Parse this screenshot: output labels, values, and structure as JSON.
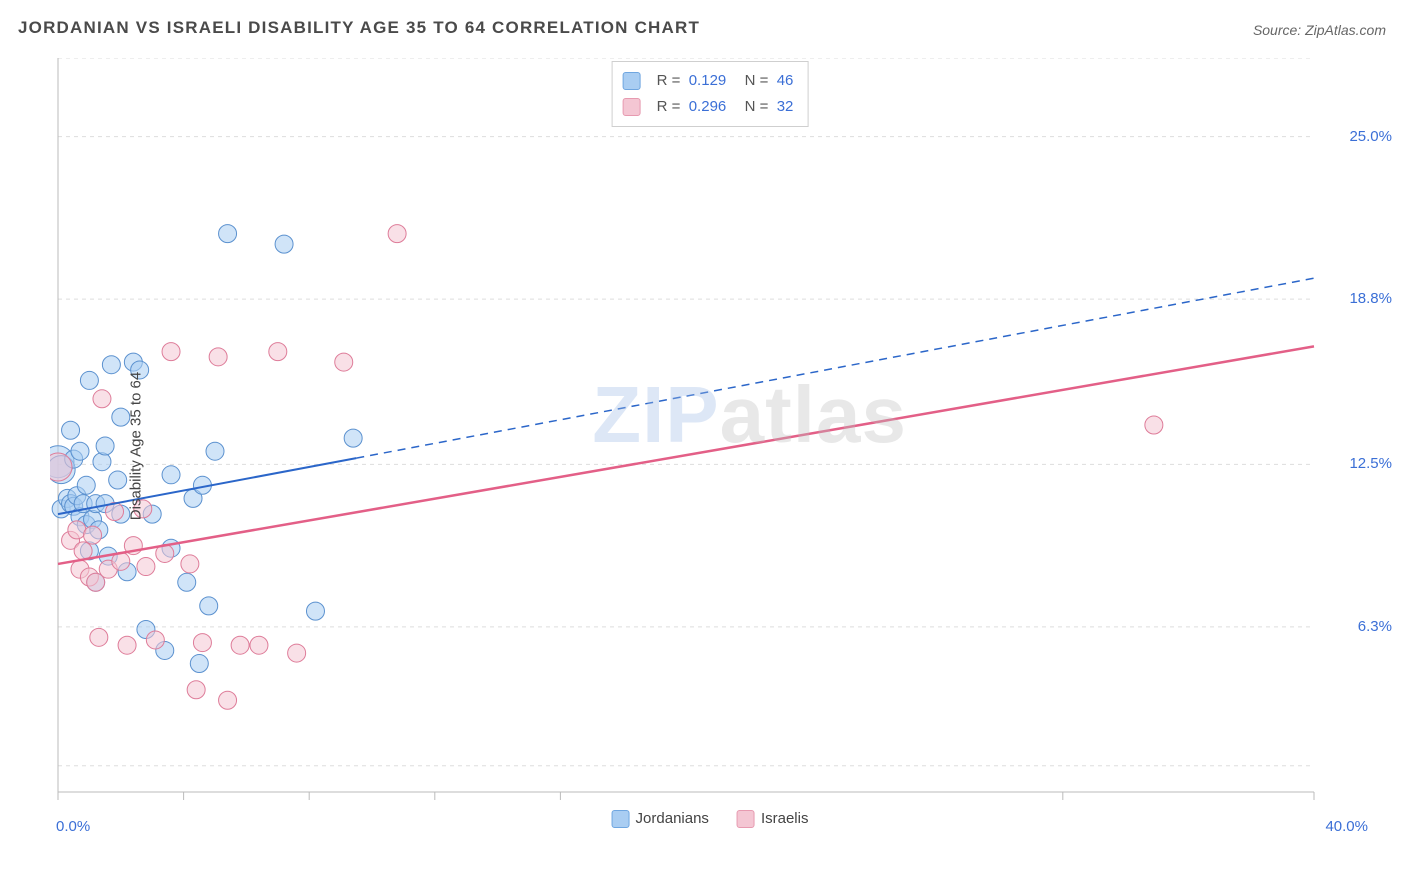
{
  "title": "JORDANIAN VS ISRAELI DISABILITY AGE 35 TO 64 CORRELATION CHART",
  "source": "Source: ZipAtlas.com",
  "ylabel": "Disability Age 35 to 64",
  "watermark_a": "ZIP",
  "watermark_b": "atlas",
  "chart": {
    "type": "scatter",
    "background_color": "#ffffff",
    "grid_color": "#dddddd",
    "axis_color": "#bbbbbb",
    "tick_color": "#bbbbbb",
    "tick_label_color": "#3b6fd6",
    "xlim": [
      0.0,
      40.0
    ],
    "ylim": [
      0.0,
      28.0
    ],
    "x_tick_positions": [
      0.0,
      4.0,
      8.0,
      12.0,
      16.0,
      32.0,
      40.0
    ],
    "x_tick_labels": {
      "0.0": "0.0%",
      "40.0": "40.0%"
    },
    "y_grid_positions": [
      1.0,
      6.3,
      12.5,
      18.8,
      25.0,
      28.0
    ],
    "y_tick_labels": {
      "6.3": "6.3%",
      "12.5": "12.5%",
      "18.8": "18.8%",
      "25.0": "25.0%"
    },
    "marker_radius": 9,
    "marker_stroke_width": 1,
    "series": [
      {
        "name": "Jordanians",
        "swatch_fill": "#a9cdf2",
        "swatch_stroke": "#6fa6e0",
        "marker_fill": "#a9cdf2",
        "marker_fill_opacity": 0.55,
        "marker_stroke": "#5b91cf",
        "trend_color": "#2b66c9",
        "trend_width": 2,
        "trend_solid_to_x": 9.5,
        "trend": {
          "x1": 0.0,
          "y1": 10.6,
          "x2": 40.0,
          "y2": 19.6
        },
        "R": "0.129",
        "N": "46",
        "points": [
          {
            "x": 0.0,
            "y": 12.6,
            "r": 16
          },
          {
            "x": 0.1,
            "y": 12.3,
            "r": 14
          },
          {
            "x": 0.1,
            "y": 10.8
          },
          {
            "x": 0.3,
            "y": 11.2
          },
          {
            "x": 0.4,
            "y": 13.8
          },
          {
            "x": 0.4,
            "y": 11.0
          },
          {
            "x": 0.5,
            "y": 12.7
          },
          {
            "x": 0.5,
            "y": 10.9
          },
          {
            "x": 0.6,
            "y": 11.3
          },
          {
            "x": 0.7,
            "y": 10.5
          },
          {
            "x": 0.7,
            "y": 13.0
          },
          {
            "x": 0.8,
            "y": 11.0
          },
          {
            "x": 0.9,
            "y": 10.2
          },
          {
            "x": 0.9,
            "y": 11.7
          },
          {
            "x": 1.0,
            "y": 9.2
          },
          {
            "x": 1.0,
            "y": 15.7
          },
          {
            "x": 1.1,
            "y": 10.4
          },
          {
            "x": 1.2,
            "y": 11.0
          },
          {
            "x": 1.2,
            "y": 8.0
          },
          {
            "x": 1.3,
            "y": 10.0
          },
          {
            "x": 1.4,
            "y": 12.6
          },
          {
            "x": 1.5,
            "y": 11.0
          },
          {
            "x": 1.5,
            "y": 13.2
          },
          {
            "x": 1.6,
            "y": 9.0
          },
          {
            "x": 1.7,
            "y": 16.3
          },
          {
            "x": 1.9,
            "y": 11.9
          },
          {
            "x": 2.0,
            "y": 10.6
          },
          {
            "x": 2.0,
            "y": 14.3
          },
          {
            "x": 2.2,
            "y": 8.4
          },
          {
            "x": 2.4,
            "y": 16.4
          },
          {
            "x": 2.6,
            "y": 16.1
          },
          {
            "x": 2.8,
            "y": 6.2
          },
          {
            "x": 3.0,
            "y": 10.6
          },
          {
            "x": 3.4,
            "y": 5.4
          },
          {
            "x": 3.6,
            "y": 9.3
          },
          {
            "x": 3.6,
            "y": 12.1
          },
          {
            "x": 4.1,
            "y": 8.0
          },
          {
            "x": 4.3,
            "y": 11.2
          },
          {
            "x": 4.5,
            "y": 4.9
          },
          {
            "x": 4.6,
            "y": 11.7
          },
          {
            "x": 4.8,
            "y": 7.1
          },
          {
            "x": 5.0,
            "y": 13.0
          },
          {
            "x": 5.4,
            "y": 21.3
          },
          {
            "x": 7.2,
            "y": 20.9
          },
          {
            "x": 8.2,
            "y": 6.9
          },
          {
            "x": 9.4,
            "y": 13.5
          }
        ]
      },
      {
        "name": "Israelis",
        "swatch_fill": "#f4c6d3",
        "swatch_stroke": "#e79ab0",
        "marker_fill": "#f4c6d3",
        "marker_fill_opacity": 0.55,
        "marker_stroke": "#de7c99",
        "trend_color": "#e35f87",
        "trend_width": 2.5,
        "trend_solid_to_x": 40.0,
        "trend": {
          "x1": 0.0,
          "y1": 8.7,
          "x2": 40.0,
          "y2": 17.0
        },
        "R": "0.296",
        "N": "32",
        "points": [
          {
            "x": 0.0,
            "y": 12.4,
            "r": 14
          },
          {
            "x": 0.4,
            "y": 9.6
          },
          {
            "x": 0.6,
            "y": 10.0
          },
          {
            "x": 0.7,
            "y": 8.5
          },
          {
            "x": 0.8,
            "y": 9.2
          },
          {
            "x": 1.0,
            "y": 8.2
          },
          {
            "x": 1.1,
            "y": 9.8
          },
          {
            "x": 1.2,
            "y": 8.0
          },
          {
            "x": 1.3,
            "y": 5.9
          },
          {
            "x": 1.4,
            "y": 15.0
          },
          {
            "x": 1.6,
            "y": 8.5
          },
          {
            "x": 1.8,
            "y": 10.7
          },
          {
            "x": 2.0,
            "y": 8.8
          },
          {
            "x": 2.2,
            "y": 5.6
          },
          {
            "x": 2.4,
            "y": 9.4
          },
          {
            "x": 2.7,
            "y": 10.8
          },
          {
            "x": 2.8,
            "y": 8.6
          },
          {
            "x": 3.1,
            "y": 5.8
          },
          {
            "x": 3.4,
            "y": 9.1
          },
          {
            "x": 3.6,
            "y": 16.8
          },
          {
            "x": 4.2,
            "y": 8.7
          },
          {
            "x": 4.4,
            "y": 3.9
          },
          {
            "x": 4.6,
            "y": 5.7
          },
          {
            "x": 5.1,
            "y": 16.6
          },
          {
            "x": 5.4,
            "y": 3.5
          },
          {
            "x": 5.8,
            "y": 5.6
          },
          {
            "x": 6.4,
            "y": 5.6
          },
          {
            "x": 7.0,
            "y": 16.8
          },
          {
            "x": 7.6,
            "y": 5.3
          },
          {
            "x": 9.1,
            "y": 16.4
          },
          {
            "x": 10.8,
            "y": 21.3
          },
          {
            "x": 34.9,
            "y": 14.0
          }
        ]
      }
    ]
  },
  "legend_bottom": [
    {
      "label": "Jordanians",
      "fill": "#a9cdf2",
      "stroke": "#6fa6e0"
    },
    {
      "label": "Israelis",
      "fill": "#f4c6d3",
      "stroke": "#e79ab0"
    }
  ]
}
